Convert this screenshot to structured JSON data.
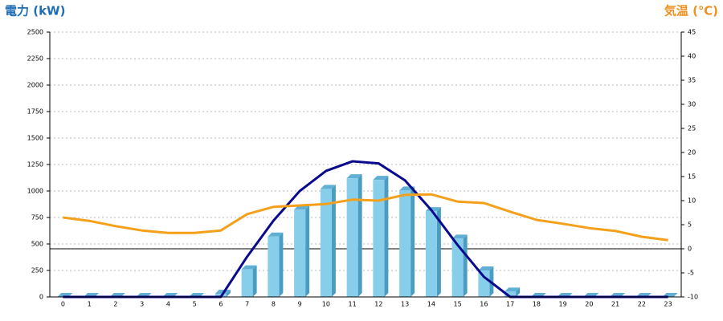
{
  "chart_data": {
    "type": "bar",
    "y_label": "電力 (kW)",
    "y2_label": "気温 (℃)",
    "y_label_color": "#1f6db5",
    "y2_label_color": "#f0901e",
    "categories": [
      "0",
      "1",
      "2",
      "3",
      "4",
      "5",
      "6",
      "7",
      "8",
      "9",
      "10",
      "11",
      "12",
      "13",
      "14",
      "15",
      "16",
      "17",
      "18",
      "19",
      "20",
      "21",
      "22",
      "23"
    ],
    "series": [
      {
        "type": "bar",
        "color": "#87ceeb",
        "values": [
          0,
          0,
          0,
          0,
          0,
          0,
          30,
          260,
          570,
          825,
          1020,
          1120,
          1105,
          1005,
          810,
          550,
          250,
          50,
          0,
          0,
          0,
          0,
          0,
          0
        ]
      },
      {
        "type": "line",
        "color": "#0a0a8c",
        "values": [
          0,
          0,
          0,
          0,
          0,
          0,
          0,
          380,
          720,
          1000,
          1190,
          1280,
          1260,
          1100,
          820,
          490,
          190,
          0,
          0,
          0,
          0,
          0,
          0,
          0
        ]
      },
      {
        "type": "line",
        "color": "#f5a01a",
        "axis": "y2",
        "values": [
          6.5,
          5.8,
          4.7,
          3.8,
          3.3,
          3.3,
          3.8,
          7.2,
          8.7,
          9,
          9.3,
          10.2,
          10,
          11.2,
          11.3,
          9.8,
          9.5,
          7.7,
          6,
          5.2,
          4.3,
          3.7,
          2.5,
          1.8
        ]
      }
    ],
    "ylim": [
      0,
      2500
    ],
    "yticks": [
      0,
      250,
      500,
      750,
      1000,
      1250,
      1500,
      1750,
      2000,
      2250,
      2500
    ],
    "y2lim": [
      -10,
      45
    ],
    "y2ticks": [
      -10,
      -5,
      0,
      5,
      10,
      15,
      20,
      25,
      30,
      35,
      40,
      45
    ],
    "grid": true
  }
}
